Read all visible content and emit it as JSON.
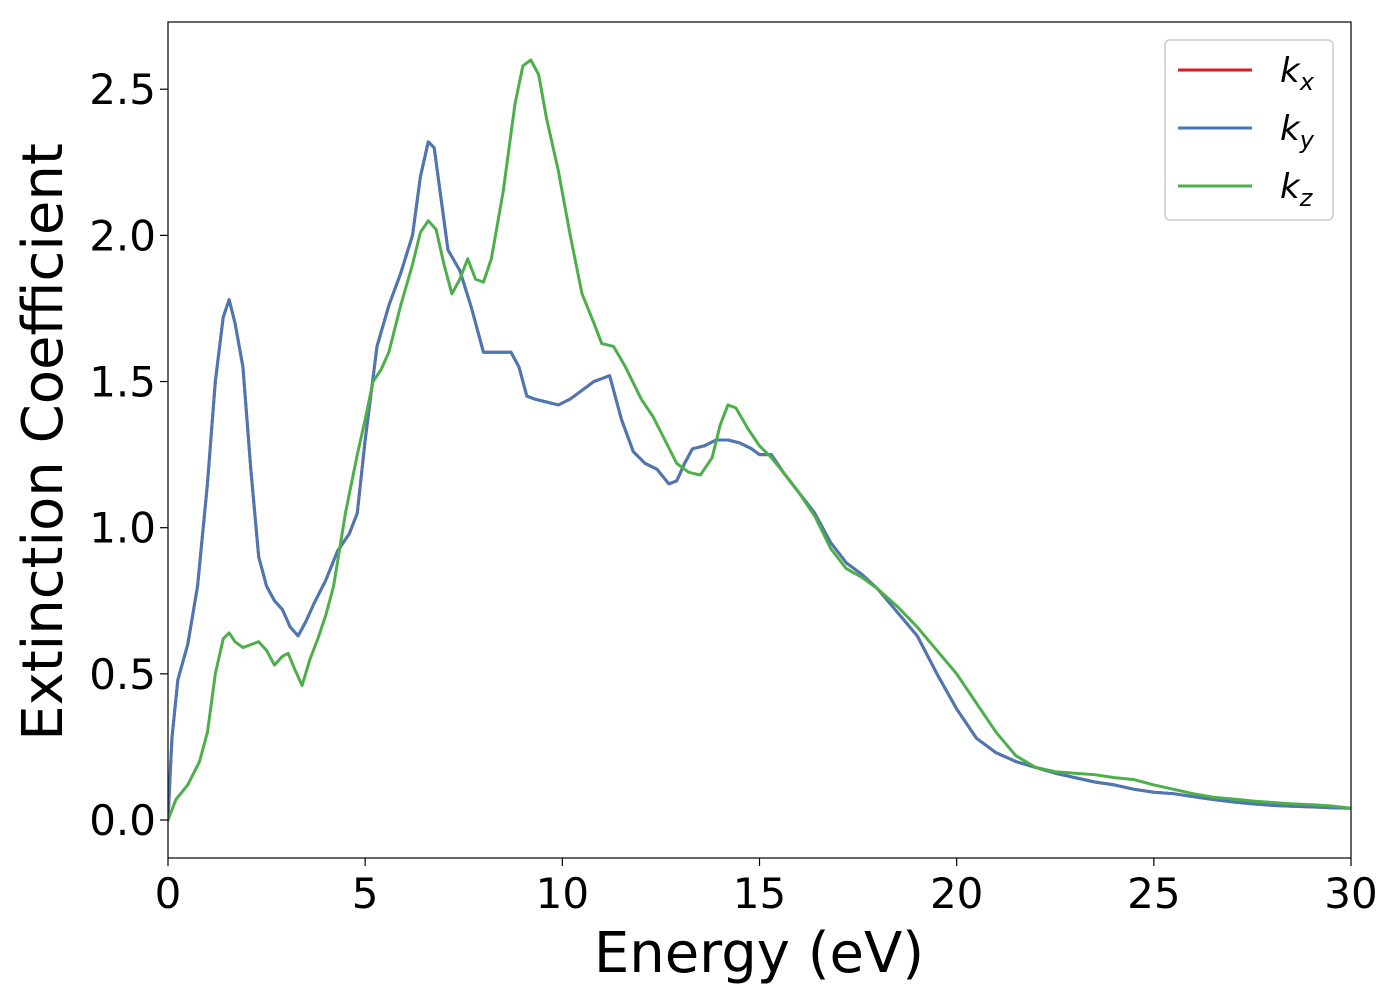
{
  "chart_data": {
    "type": "line",
    "xlabel": "Energy (eV)",
    "ylabel": "Extinction Coefficient",
    "xlim": [
      0,
      30
    ],
    "ylim": [
      -0.13,
      2.73
    ],
    "xticks": [
      0,
      5,
      10,
      15,
      20,
      25,
      30
    ],
    "xtick_labels": [
      "0",
      "5",
      "10",
      "15",
      "20",
      "25",
      "30"
    ],
    "yticks": [
      0.0,
      0.5,
      1.0,
      1.5,
      2.0,
      2.5
    ],
    "ytick_labels": [
      "0.0",
      "0.5",
      "1.0",
      "1.5",
      "2.0",
      "2.5"
    ],
    "grid": false,
    "legend_position": "top-right",
    "series": [
      {
        "name": "k",
        "subscript": "x",
        "color": "#e41a1c",
        "points": [
          [
            0,
            0
          ],
          [
            0.1,
            0.28
          ],
          [
            0.25,
            0.48
          ],
          [
            0.5,
            0.6
          ],
          [
            0.75,
            0.8
          ],
          [
            1.0,
            1.15
          ],
          [
            1.2,
            1.5
          ],
          [
            1.4,
            1.72
          ],
          [
            1.55,
            1.78
          ],
          [
            1.7,
            1.7
          ],
          [
            1.9,
            1.55
          ],
          [
            2.1,
            1.2
          ],
          [
            2.3,
            0.9
          ],
          [
            2.5,
            0.8
          ],
          [
            2.7,
            0.75
          ],
          [
            2.9,
            0.72
          ],
          [
            3.1,
            0.66
          ],
          [
            3.3,
            0.63
          ],
          [
            3.5,
            0.68
          ],
          [
            3.7,
            0.74
          ],
          [
            4.0,
            0.82
          ],
          [
            4.3,
            0.92
          ],
          [
            4.6,
            0.98
          ],
          [
            4.8,
            1.05
          ],
          [
            5.0,
            1.3
          ],
          [
            5.3,
            1.62
          ],
          [
            5.6,
            1.76
          ],
          [
            5.9,
            1.87
          ],
          [
            6.2,
            2.0
          ],
          [
            6.4,
            2.2
          ],
          [
            6.6,
            2.32
          ],
          [
            6.75,
            2.3
          ],
          [
            6.9,
            2.15
          ],
          [
            7.1,
            1.95
          ],
          [
            7.4,
            1.88
          ],
          [
            7.7,
            1.75
          ],
          [
            8.0,
            1.6
          ],
          [
            8.3,
            1.6
          ],
          [
            8.7,
            1.6
          ],
          [
            8.9,
            1.55
          ],
          [
            9.1,
            1.45
          ],
          [
            9.3,
            1.44
          ],
          [
            9.6,
            1.43
          ],
          [
            9.9,
            1.42
          ],
          [
            10.2,
            1.44
          ],
          [
            10.5,
            1.47
          ],
          [
            10.8,
            1.5
          ],
          [
            11.0,
            1.51
          ],
          [
            11.2,
            1.52
          ],
          [
            11.5,
            1.37
          ],
          [
            11.8,
            1.26
          ],
          [
            12.1,
            1.22
          ],
          [
            12.4,
            1.2
          ],
          [
            12.7,
            1.15
          ],
          [
            12.9,
            1.16
          ],
          [
            13.1,
            1.22
          ],
          [
            13.3,
            1.27
          ],
          [
            13.6,
            1.28
          ],
          [
            13.9,
            1.3
          ],
          [
            14.2,
            1.3
          ],
          [
            14.5,
            1.29
          ],
          [
            14.8,
            1.27
          ],
          [
            15.0,
            1.25
          ],
          [
            15.3,
            1.25
          ],
          [
            15.6,
            1.19
          ],
          [
            16.0,
            1.12
          ],
          [
            16.4,
            1.05
          ],
          [
            16.8,
            0.95
          ],
          [
            17.2,
            0.88
          ],
          [
            17.6,
            0.84
          ],
          [
            18.0,
            0.79
          ],
          [
            18.5,
            0.71
          ],
          [
            19.0,
            0.63
          ],
          [
            19.5,
            0.5
          ],
          [
            20.0,
            0.38
          ],
          [
            20.5,
            0.28
          ],
          [
            21.0,
            0.23
          ],
          [
            21.5,
            0.2
          ],
          [
            22.0,
            0.18
          ],
          [
            22.5,
            0.16
          ],
          [
            23.0,
            0.145
          ],
          [
            23.5,
            0.13
          ],
          [
            24.0,
            0.12
          ],
          [
            24.5,
            0.105
          ],
          [
            25.0,
            0.095
          ],
          [
            25.5,
            0.09
          ],
          [
            26.0,
            0.08
          ],
          [
            26.5,
            0.07
          ],
          [
            27.0,
            0.062
          ],
          [
            27.5,
            0.055
          ],
          [
            28.0,
            0.05
          ],
          [
            28.5,
            0.047
          ],
          [
            29.0,
            0.045
          ],
          [
            29.5,
            0.042
          ],
          [
            30.0,
            0.04
          ]
        ]
      },
      {
        "name": "k",
        "subscript": "y",
        "color": "#4a78b4",
        "points": [
          [
            0,
            0
          ],
          [
            0.1,
            0.28
          ],
          [
            0.25,
            0.48
          ],
          [
            0.5,
            0.6
          ],
          [
            0.75,
            0.8
          ],
          [
            1.0,
            1.15
          ],
          [
            1.2,
            1.5
          ],
          [
            1.4,
            1.72
          ],
          [
            1.55,
            1.78
          ],
          [
            1.7,
            1.7
          ],
          [
            1.9,
            1.55
          ],
          [
            2.1,
            1.2
          ],
          [
            2.3,
            0.9
          ],
          [
            2.5,
            0.8
          ],
          [
            2.7,
            0.75
          ],
          [
            2.9,
            0.72
          ],
          [
            3.1,
            0.66
          ],
          [
            3.3,
            0.63
          ],
          [
            3.5,
            0.68
          ],
          [
            3.7,
            0.74
          ],
          [
            4.0,
            0.82
          ],
          [
            4.3,
            0.92
          ],
          [
            4.6,
            0.98
          ],
          [
            4.8,
            1.05
          ],
          [
            5.0,
            1.3
          ],
          [
            5.3,
            1.62
          ],
          [
            5.6,
            1.76
          ],
          [
            5.9,
            1.87
          ],
          [
            6.2,
            2.0
          ],
          [
            6.4,
            2.2
          ],
          [
            6.6,
            2.32
          ],
          [
            6.75,
            2.3
          ],
          [
            6.9,
            2.15
          ],
          [
            7.1,
            1.95
          ],
          [
            7.4,
            1.88
          ],
          [
            7.7,
            1.75
          ],
          [
            8.0,
            1.6
          ],
          [
            8.3,
            1.6
          ],
          [
            8.7,
            1.6
          ],
          [
            8.9,
            1.55
          ],
          [
            9.1,
            1.45
          ],
          [
            9.3,
            1.44
          ],
          [
            9.6,
            1.43
          ],
          [
            9.9,
            1.42
          ],
          [
            10.2,
            1.44
          ],
          [
            10.5,
            1.47
          ],
          [
            10.8,
            1.5
          ],
          [
            11.0,
            1.51
          ],
          [
            11.2,
            1.52
          ],
          [
            11.5,
            1.37
          ],
          [
            11.8,
            1.26
          ],
          [
            12.1,
            1.22
          ],
          [
            12.4,
            1.2
          ],
          [
            12.7,
            1.15
          ],
          [
            12.9,
            1.16
          ],
          [
            13.1,
            1.22
          ],
          [
            13.3,
            1.27
          ],
          [
            13.6,
            1.28
          ],
          [
            13.9,
            1.3
          ],
          [
            14.2,
            1.3
          ],
          [
            14.5,
            1.29
          ],
          [
            14.8,
            1.27
          ],
          [
            15.0,
            1.25
          ],
          [
            15.3,
            1.25
          ],
          [
            15.6,
            1.19
          ],
          [
            16.0,
            1.12
          ],
          [
            16.4,
            1.05
          ],
          [
            16.8,
            0.95
          ],
          [
            17.2,
            0.88
          ],
          [
            17.6,
            0.84
          ],
          [
            18.0,
            0.79
          ],
          [
            18.5,
            0.71
          ],
          [
            19.0,
            0.63
          ],
          [
            19.5,
            0.5
          ],
          [
            20.0,
            0.38
          ],
          [
            20.5,
            0.28
          ],
          [
            21.0,
            0.23
          ],
          [
            21.5,
            0.2
          ],
          [
            22.0,
            0.18
          ],
          [
            22.5,
            0.16
          ],
          [
            23.0,
            0.145
          ],
          [
            23.5,
            0.13
          ],
          [
            24.0,
            0.12
          ],
          [
            24.5,
            0.105
          ],
          [
            25.0,
            0.095
          ],
          [
            25.5,
            0.09
          ],
          [
            26.0,
            0.08
          ],
          [
            26.5,
            0.07
          ],
          [
            27.0,
            0.062
          ],
          [
            27.5,
            0.055
          ],
          [
            28.0,
            0.05
          ],
          [
            28.5,
            0.047
          ],
          [
            29.0,
            0.045
          ],
          [
            29.5,
            0.042
          ],
          [
            30.0,
            0.04
          ]
        ]
      },
      {
        "name": "k",
        "subscript": "z",
        "color": "#4daf4a",
        "points": [
          [
            0,
            0
          ],
          [
            0.2,
            0.07
          ],
          [
            0.5,
            0.12
          ],
          [
            0.8,
            0.2
          ],
          [
            1.0,
            0.3
          ],
          [
            1.2,
            0.5
          ],
          [
            1.4,
            0.62
          ],
          [
            1.55,
            0.64
          ],
          [
            1.7,
            0.61
          ],
          [
            1.9,
            0.59
          ],
          [
            2.1,
            0.6
          ],
          [
            2.3,
            0.61
          ],
          [
            2.5,
            0.58
          ],
          [
            2.7,
            0.53
          ],
          [
            2.9,
            0.56
          ],
          [
            3.05,
            0.57
          ],
          [
            3.2,
            0.52
          ],
          [
            3.4,
            0.46
          ],
          [
            3.6,
            0.55
          ],
          [
            3.8,
            0.62
          ],
          [
            4.0,
            0.7
          ],
          [
            4.2,
            0.8
          ],
          [
            4.5,
            1.05
          ],
          [
            4.8,
            1.25
          ],
          [
            5.0,
            1.37
          ],
          [
            5.2,
            1.5
          ],
          [
            5.4,
            1.54
          ],
          [
            5.6,
            1.6
          ],
          [
            5.9,
            1.76
          ],
          [
            6.2,
            1.9
          ],
          [
            6.4,
            2.01
          ],
          [
            6.6,
            2.05
          ],
          [
            6.8,
            2.02
          ],
          [
            7.0,
            1.9
          ],
          [
            7.2,
            1.8
          ],
          [
            7.4,
            1.85
          ],
          [
            7.6,
            1.92
          ],
          [
            7.8,
            1.85
          ],
          [
            8.0,
            1.84
          ],
          [
            8.2,
            1.92
          ],
          [
            8.5,
            2.15
          ],
          [
            8.8,
            2.45
          ],
          [
            9.0,
            2.58
          ],
          [
            9.2,
            2.6
          ],
          [
            9.4,
            2.55
          ],
          [
            9.6,
            2.4
          ],
          [
            9.9,
            2.22
          ],
          [
            10.2,
            2.0
          ],
          [
            10.5,
            1.8
          ],
          [
            10.8,
            1.7
          ],
          [
            11.0,
            1.63
          ],
          [
            11.3,
            1.62
          ],
          [
            11.6,
            1.55
          ],
          [
            12.0,
            1.44
          ],
          [
            12.3,
            1.38
          ],
          [
            12.6,
            1.3
          ],
          [
            12.9,
            1.22
          ],
          [
            13.2,
            1.19
          ],
          [
            13.5,
            1.18
          ],
          [
            13.8,
            1.24
          ],
          [
            14.0,
            1.35
          ],
          [
            14.2,
            1.42
          ],
          [
            14.4,
            1.41
          ],
          [
            14.7,
            1.34
          ],
          [
            15.0,
            1.28
          ],
          [
            15.3,
            1.24
          ],
          [
            15.6,
            1.19
          ],
          [
            16.0,
            1.12
          ],
          [
            16.4,
            1.04
          ],
          [
            16.8,
            0.93
          ],
          [
            17.2,
            0.86
          ],
          [
            17.6,
            0.83
          ],
          [
            18.0,
            0.79
          ],
          [
            18.5,
            0.73
          ],
          [
            19.0,
            0.66
          ],
          [
            19.5,
            0.58
          ],
          [
            20.0,
            0.5
          ],
          [
            20.5,
            0.4
          ],
          [
            21.0,
            0.3
          ],
          [
            21.5,
            0.22
          ],
          [
            22.0,
            0.18
          ],
          [
            22.5,
            0.165
          ],
          [
            23.0,
            0.16
          ],
          [
            23.5,
            0.155
          ],
          [
            24.0,
            0.145
          ],
          [
            24.5,
            0.138
          ],
          [
            25.0,
            0.12
          ],
          [
            25.5,
            0.105
          ],
          [
            26.0,
            0.09
          ],
          [
            26.5,
            0.078
          ],
          [
            27.0,
            0.072
          ],
          [
            27.5,
            0.065
          ],
          [
            28.0,
            0.06
          ],
          [
            28.5,
            0.055
          ],
          [
            29.0,
            0.052
          ],
          [
            29.5,
            0.048
          ],
          [
            30.0,
            0.04
          ]
        ]
      }
    ]
  }
}
